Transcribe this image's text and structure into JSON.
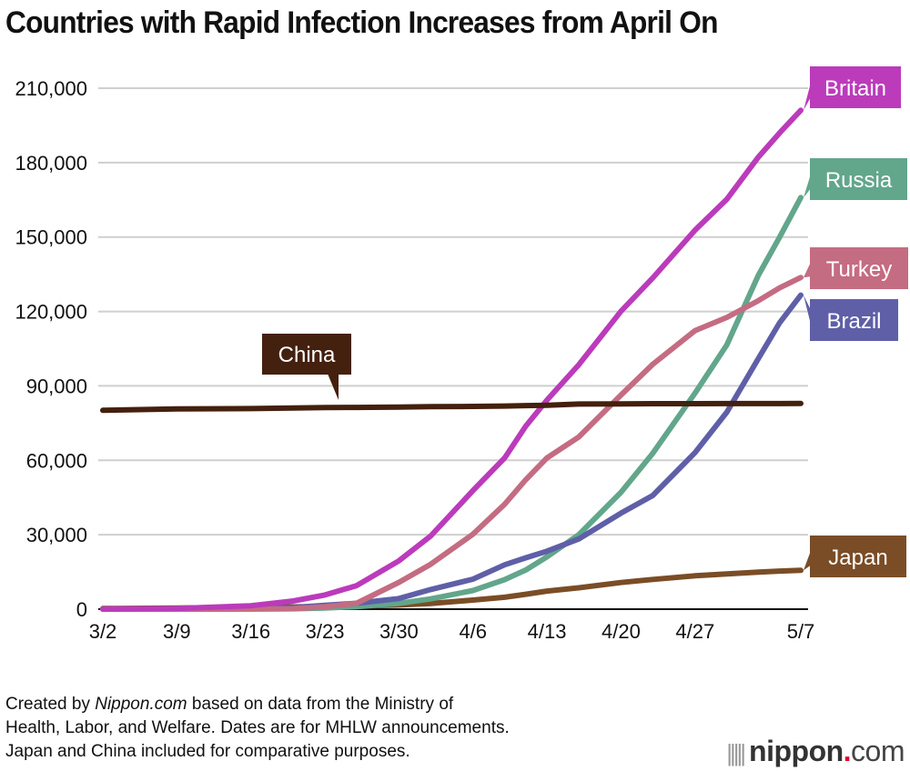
{
  "chart_data": {
    "type": "line",
    "title": "Countries with Rapid Infection Increases from April On",
    "xlabel": "",
    "ylabel": "",
    "ylim": [
      0,
      210000
    ],
    "yticks": [
      0,
      30000,
      60000,
      90000,
      120000,
      150000,
      180000,
      210000
    ],
    "ytick_labels": [
      "0",
      "30,000",
      "60,000",
      "90,000",
      "120,000",
      "150,000",
      "180,000",
      "210,000"
    ],
    "xticks": [
      "3/2",
      "3/9",
      "3/16",
      "3/23",
      "3/30",
      "4/6",
      "4/13",
      "4/20",
      "4/27",
      "5/7"
    ],
    "xtick_days": [
      0,
      7,
      14,
      21,
      28,
      35,
      42,
      49,
      56,
      66
    ],
    "grid": true,
    "legend": "right-end labels",
    "x_days": [
      0,
      7,
      14,
      18,
      21,
      24,
      28,
      31,
      35,
      38,
      40,
      42,
      45,
      49,
      52,
      56,
      59,
      62,
      64,
      66
    ],
    "series": [
      {
        "name": "Britain",
        "color": "#bb3bbb",
        "values": [
          40,
          270,
          1400,
          3300,
          5700,
          9500,
          19500,
          29500,
          47800,
          61000,
          73800,
          84300,
          98500,
          120100,
          133500,
          152800,
          165200,
          182300,
          192000,
          201100
        ]
      },
      {
        "name": "Russia",
        "color": "#62a68b",
        "values": [
          3,
          10,
          60,
          150,
          440,
          1040,
          2340,
          4150,
          7500,
          11900,
          15800,
          21100,
          30000,
          47100,
          62800,
          87100,
          106500,
          134700,
          150000,
          165900
        ]
      },
      {
        "name": "Turkey",
        "color": "#c46c82",
        "values": [
          0,
          0,
          20,
          190,
          950,
          2400,
          10800,
          18100,
          30200,
          42300,
          52200,
          61000,
          69400,
          86300,
          98700,
          112300,
          117600,
          124400,
          129500,
          133700
        ]
      },
      {
        "name": "Brazil",
        "color": "#5f5fa8",
        "values": [
          2,
          25,
          200,
          620,
          1550,
          2400,
          4300,
          7900,
          12100,
          17900,
          20700,
          23400,
          28300,
          38700,
          45800,
          63100,
          79400,
          101100,
          115500,
          126600
        ]
      },
      {
        "name": "China",
        "color": "#44200e",
        "values": [
          80150,
          80740,
          80860,
          81100,
          81250,
          81340,
          81470,
          81620,
          81710,
          81860,
          82050,
          82160,
          82690,
          82750,
          82810,
          82840,
          82870,
          82880,
          82880,
          82890
        ]
      },
      {
        "name": "Japan",
        "color": "#7a4d26",
        "values": [
          254,
          430,
          780,
          900,
          1050,
          1250,
          1700,
          2300,
          3650,
          4800,
          6000,
          7300,
          8600,
          10750,
          12000,
          13450,
          14200,
          14900,
          15350,
          15650
        ]
      }
    ],
    "annotations": [
      {
        "text": "China",
        "series": "China"
      }
    ]
  },
  "footer": {
    "note_line1_pre": "Created by ",
    "note_line1_em": "Nippon.com",
    "note_line1_post": " based on data from the Ministry of",
    "note_line2": "Health, Labor, and Welfare. Dates are for MHLW announcements.",
    "note_line3": "Japan and China included for comparative purposes."
  },
  "logo": {
    "bars": "|||||",
    "name": "nippon",
    "dot": ".",
    "com": "com"
  }
}
